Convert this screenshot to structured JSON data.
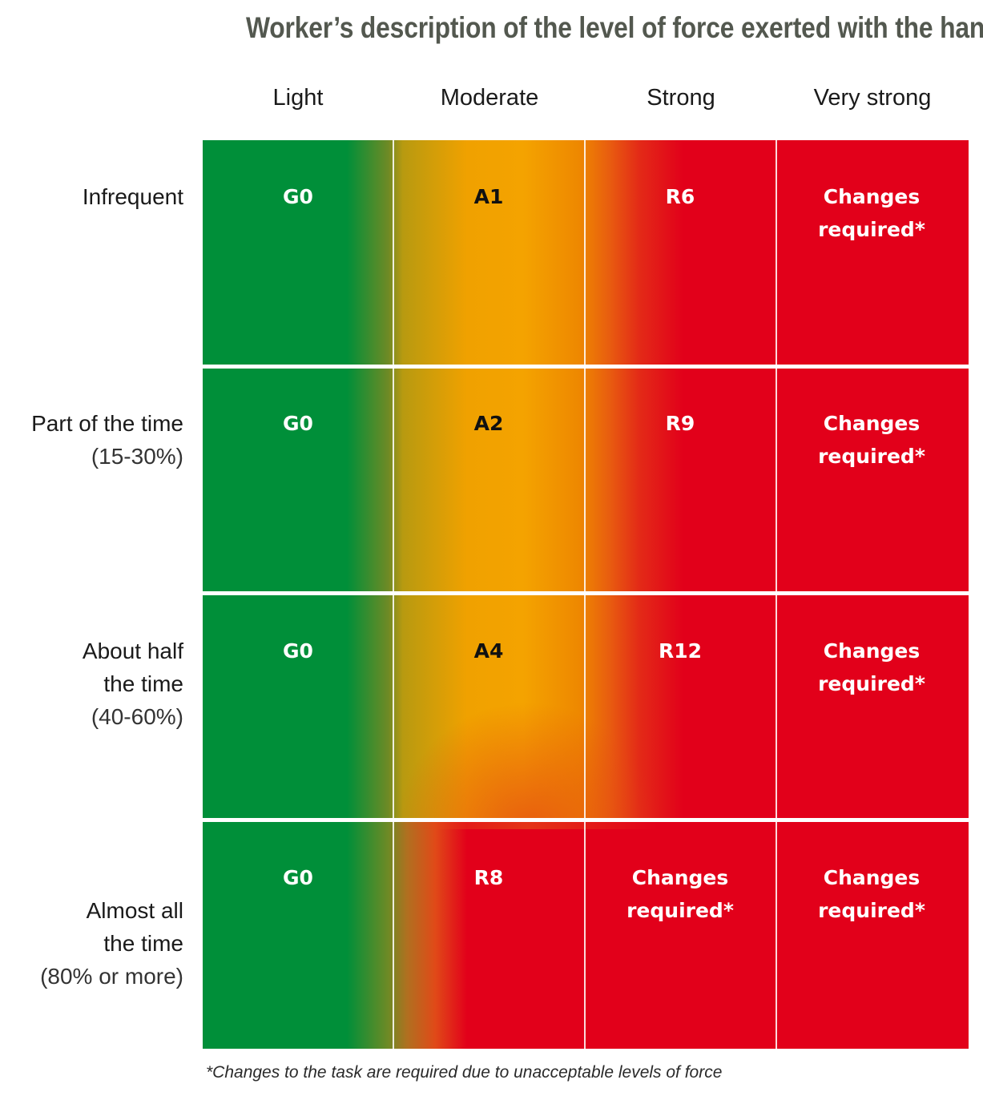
{
  "title": "Worker’s description of the level of force exerted with the hand",
  "columns": [
    "Light",
    "Moderate",
    "Strong",
    "Very strong"
  ],
  "rows": [
    {
      "lines": [
        "Infrequent"
      ],
      "sub": ""
    },
    {
      "lines": [
        "Part of the time"
      ],
      "sub": "(15-30%)"
    },
    {
      "lines": [
        "About half",
        "the time"
      ],
      "sub": "(40-60%)"
    },
    {
      "lines": [
        "Almost all",
        "the time"
      ],
      "sub": "(80% or more)"
    }
  ],
  "cells": [
    [
      "G0",
      "A1",
      "R6",
      "Changes required*"
    ],
    [
      "G0",
      "A2",
      "R9",
      "Changes required*"
    ],
    [
      "G0",
      "A4",
      "R12",
      "Changes required*"
    ],
    [
      "G0",
      "R8",
      "Changes required*",
      "Changes required*"
    ]
  ],
  "cell_lines": [
    [
      [
        "G0"
      ],
      [
        "A1"
      ],
      [
        "R6"
      ],
      [
        "Changes",
        "required*"
      ]
    ],
    [
      [
        "G0"
      ],
      [
        "A2"
      ],
      [
        "R9"
      ],
      [
        "Changes",
        "required*"
      ]
    ],
    [
      [
        "G0"
      ],
      [
        "A4"
      ],
      [
        "R12"
      ],
      [
        "Changes",
        "required*"
      ]
    ],
    [
      [
        "G0"
      ],
      [
        "R8"
      ],
      [
        "Changes",
        "required*"
      ],
      [
        "Changes",
        "required*"
      ]
    ]
  ],
  "colors": {
    "green": "#008f39",
    "amber": "#f4a300",
    "red": "#e2001a",
    "title": "#53584f"
  },
  "footnote": "*Changes to the task are required due to unacceptable levels of force"
}
